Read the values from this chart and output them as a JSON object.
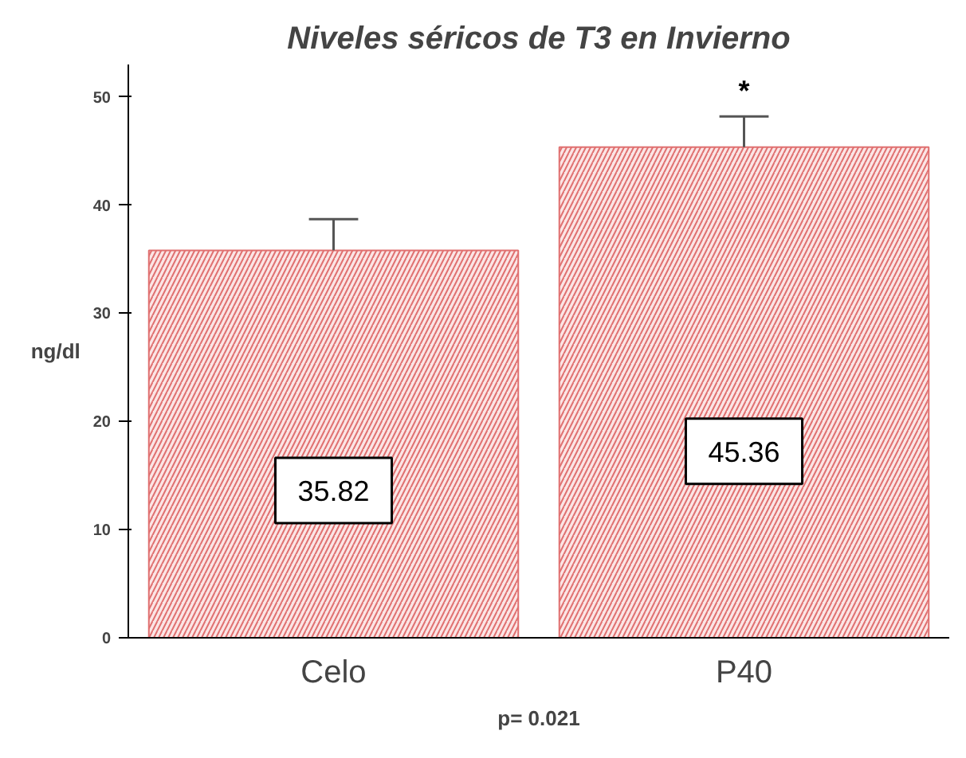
{
  "chart_data": {
    "type": "bar",
    "title": "Niveles séricos de T3 en Invierno",
    "ylabel": "ng/dl",
    "categories": [
      "Celo",
      "P40"
    ],
    "values": [
      35.82,
      45.36
    ],
    "errors": [
      [
        35.82,
        38.7
      ],
      [
        45.36,
        48.2
      ]
    ],
    "color": "#e07070",
    "ylim": [
      0,
      53
    ],
    "yticks": [
      0,
      10,
      20,
      30,
      40,
      50
    ],
    "data_labels": true,
    "grid": false,
    "annotations": [
      {
        "text": "*",
        "x": "P40",
        "y": 48.2
      },
      "p= 0.021"
    ]
  }
}
